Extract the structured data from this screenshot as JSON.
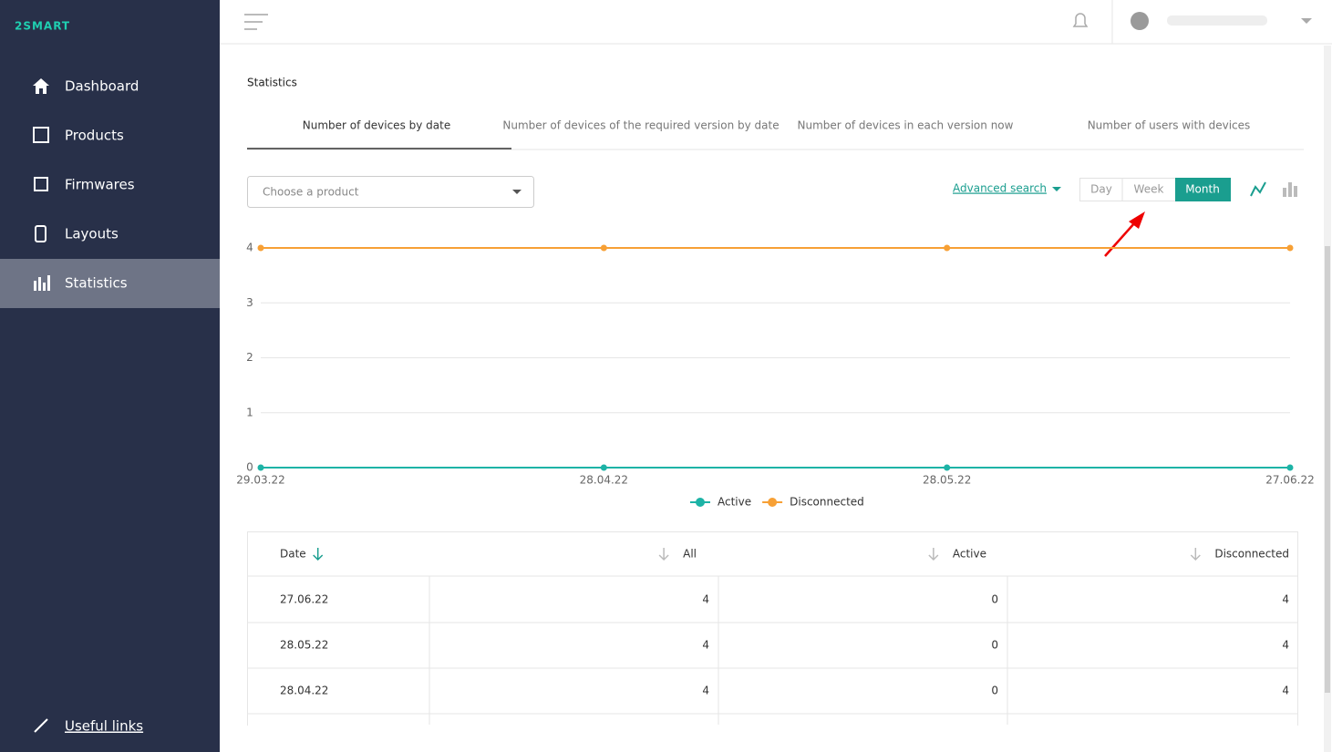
{
  "sidebar": {
    "logo": "2SMART",
    "nav": [
      "Dashboard",
      "Products",
      "Firmwares",
      "Layouts",
      "Statistics"
    ],
    "footer_link": "Useful links"
  },
  "page": {
    "title": "Statistics",
    "tabs": [
      "Number of devices by date",
      "Number of devices of the required version by date",
      "Number of devices in each version now",
      "Number of users with devices"
    ],
    "product_select": "Choose a product",
    "advanced_search": "Advanced search",
    "periods": [
      "Day",
      "Week",
      "Month"
    ]
  },
  "chart_data": {
    "type": "line",
    "categories": [
      "29.03.22",
      "28.04.22",
      "28.05.22",
      "27.06.22"
    ],
    "series": [
      {
        "name": "Active",
        "color": "#1db3a6",
        "values": [
          0,
          0,
          0,
          0
        ]
      },
      {
        "name": "Disconnected",
        "color": "#f7a035",
        "values": [
          4,
          4,
          4,
          4
        ]
      }
    ],
    "ylim": [
      0,
      4
    ],
    "yticks": [
      0,
      1,
      2,
      3,
      4
    ],
    "grid": true
  },
  "table": {
    "columns": [
      "Date",
      "All",
      "Active",
      "Disconnected"
    ],
    "rows": [
      [
        "27.06.22",
        4,
        0,
        4
      ],
      [
        "28.05.22",
        4,
        0,
        4
      ],
      [
        "28.04.22",
        4,
        0,
        4
      ]
    ]
  }
}
